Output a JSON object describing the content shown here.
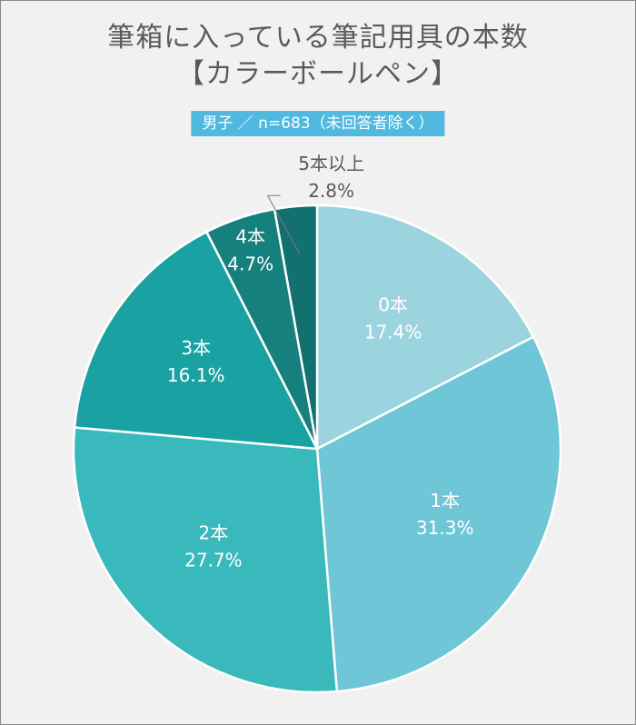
{
  "title_line1": "筆箱に入っている筆記用具の本数",
  "title_line2": "【カラーボールペン】",
  "subtitle": "男子 ／ n=683（未回答者除く）",
  "chart_data": {
    "type": "pie",
    "start": "12 o'clock",
    "direction": "clockwise",
    "slices": [
      {
        "label": "0本",
        "value": 17.4,
        "value_text": "17.4%",
        "color": "#9bd4df",
        "text_color": "#ffffff"
      },
      {
        "label": "1本",
        "value": 31.3,
        "value_text": "31.3%",
        "color": "#6ec6d6",
        "text_color": "#ffffff"
      },
      {
        "label": "2本",
        "value": 27.7,
        "value_text": "27.7%",
        "color": "#3ab9bc",
        "text_color": "#ffffff"
      },
      {
        "label": "3本",
        "value": 16.1,
        "value_text": "16.1%",
        "color": "#1aa1a2",
        "text_color": "#ffffff"
      },
      {
        "label": "4本",
        "value": 4.7,
        "value_text": "4.7%",
        "color": "#16807f",
        "text_color": "#ffffff"
      },
      {
        "label": "5本以上",
        "value": 2.8,
        "value_text": "2.8%",
        "color": "#127170",
        "text_color": "#5a5a5a"
      }
    ]
  }
}
